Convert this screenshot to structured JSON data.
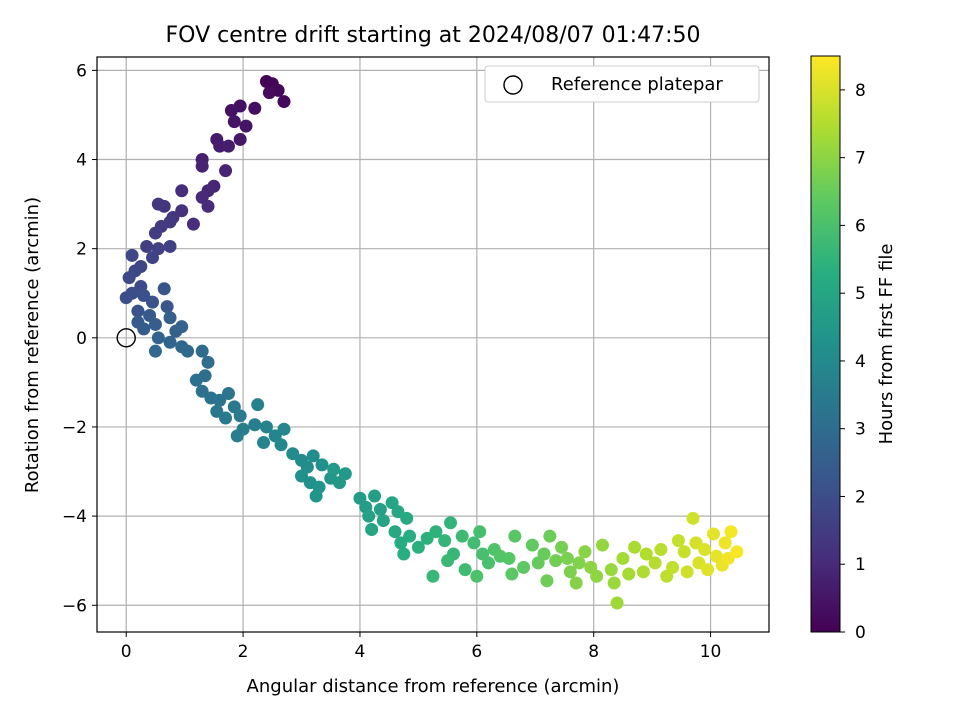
{
  "chart_data": {
    "type": "scatter",
    "title": "FOV centre drift starting at 2024/08/07 01:47:50",
    "xlabel": "Angular distance from reference (arcmin)",
    "ylabel": "Rotation from reference (arcmin)",
    "xlim": [
      -0.5,
      11.0
    ],
    "ylim": [
      -6.6,
      6.3
    ],
    "xticks": [
      0,
      2,
      4,
      6,
      8,
      10
    ],
    "xtick_labels": [
      "0",
      "2",
      "4",
      "6",
      "8",
      "10"
    ],
    "yticks": [
      -6,
      -4,
      -2,
      0,
      2,
      4,
      6
    ],
    "ytick_labels": [
      "−6",
      "−4",
      "−2",
      "0",
      "2",
      "4",
      "6"
    ],
    "grid": true,
    "legend": {
      "placement": "top-right",
      "entries": [
        {
          "label": "Reference platepar",
          "marker": "open-circle",
          "x": 0,
          "y": 0
        }
      ]
    },
    "colorbar": {
      "label": "Hours from first FF file",
      "colormap": "viridis",
      "range": [
        0,
        8.5
      ],
      "ticks": [
        0,
        1,
        2,
        3,
        4,
        5,
        6,
        7,
        8
      ],
      "tick_labels": [
        "0",
        "1",
        "2",
        "3",
        "4",
        "5",
        "6",
        "7",
        "8"
      ]
    },
    "series": [
      {
        "color_by": "hours",
        "points": [
          {
            "x": 2.4,
            "y": 5.75,
            "t": 0.05
          },
          {
            "x": 2.5,
            "y": 5.7,
            "t": 0.1
          },
          {
            "x": 2.6,
            "y": 5.55,
            "t": 0.15
          },
          {
            "x": 2.7,
            "y": 5.3,
            "t": 0.2
          },
          {
            "x": 2.45,
            "y": 5.5,
            "t": 0.25
          },
          {
            "x": 2.2,
            "y": 5.15,
            "t": 0.3
          },
          {
            "x": 1.95,
            "y": 5.2,
            "t": 0.35
          },
          {
            "x": 1.8,
            "y": 5.1,
            "t": 0.4
          },
          {
            "x": 1.85,
            "y": 4.85,
            "t": 0.45
          },
          {
            "x": 2.05,
            "y": 4.75,
            "t": 0.5
          },
          {
            "x": 1.95,
            "y": 4.45,
            "t": 0.55
          },
          {
            "x": 1.55,
            "y": 4.45,
            "t": 0.6
          },
          {
            "x": 1.6,
            "y": 4.3,
            "t": 0.65
          },
          {
            "x": 1.75,
            "y": 4.3,
            "t": 0.7
          },
          {
            "x": 1.3,
            "y": 4.0,
            "t": 0.75
          },
          {
            "x": 1.3,
            "y": 3.85,
            "t": 0.8
          },
          {
            "x": 1.7,
            "y": 3.75,
            "t": 0.85
          },
          {
            "x": 1.5,
            "y": 3.4,
            "t": 0.9
          },
          {
            "x": 1.4,
            "y": 3.3,
            "t": 0.95
          },
          {
            "x": 1.3,
            "y": 3.15,
            "t": 1.0
          },
          {
            "x": 1.4,
            "y": 2.95,
            "t": 1.05
          },
          {
            "x": 0.95,
            "y": 3.3,
            "t": 1.1
          },
          {
            "x": 1.15,
            "y": 2.55,
            "t": 1.15
          },
          {
            "x": 0.95,
            "y": 2.85,
            "t": 1.2
          },
          {
            "x": 0.8,
            "y": 2.7,
            "t": 1.25
          },
          {
            "x": 0.65,
            "y": 2.95,
            "t": 1.3
          },
          {
            "x": 0.55,
            "y": 3.0,
            "t": 1.35
          },
          {
            "x": 0.75,
            "y": 2.6,
            "t": 1.4
          },
          {
            "x": 0.6,
            "y": 2.5,
            "t": 1.45
          },
          {
            "x": 0.5,
            "y": 2.35,
            "t": 1.5
          },
          {
            "x": 0.35,
            "y": 2.05,
            "t": 1.55
          },
          {
            "x": 0.55,
            "y": 2.0,
            "t": 1.6
          },
          {
            "x": 0.75,
            "y": 2.05,
            "t": 1.65
          },
          {
            "x": 0.45,
            "y": 1.8,
            "t": 1.7
          },
          {
            "x": 0.25,
            "y": 1.6,
            "t": 1.75
          },
          {
            "x": 0.1,
            "y": 1.85,
            "t": 1.8
          },
          {
            "x": 0.15,
            "y": 1.5,
            "t": 1.85
          },
          {
            "x": 0.05,
            "y": 1.35,
            "t": 1.9
          },
          {
            "x": 0.25,
            "y": 1.15,
            "t": 1.95
          },
          {
            "x": 0.1,
            "y": 1.0,
            "t": 2.0
          },
          {
            "x": 0.0,
            "y": 0.9,
            "t": 2.05
          },
          {
            "x": 0.3,
            "y": 0.95,
            "t": 2.1
          },
          {
            "x": 0.45,
            "y": 0.8,
            "t": 2.15
          },
          {
            "x": 0.2,
            "y": 0.6,
            "t": 2.2
          },
          {
            "x": 0.65,
            "y": 1.1,
            "t": 2.25
          },
          {
            "x": 0.7,
            "y": 0.7,
            "t": 2.3
          },
          {
            "x": 0.4,
            "y": 0.5,
            "t": 2.35
          },
          {
            "x": 0.2,
            "y": 0.35,
            "t": 2.4
          },
          {
            "x": 0.3,
            "y": 0.2,
            "t": 2.45
          },
          {
            "x": 0.5,
            "y": 0.3,
            "t": 2.5
          },
          {
            "x": 0.75,
            "y": 0.45,
            "t": 2.55
          },
          {
            "x": 0.85,
            "y": 0.15,
            "t": 2.6
          },
          {
            "x": 0.95,
            "y": 0.25,
            "t": 2.65
          },
          {
            "x": 0.55,
            "y": 0.0,
            "t": 2.7
          },
          {
            "x": 0.75,
            "y": -0.1,
            "t": 2.75
          },
          {
            "x": 0.95,
            "y": -0.2,
            "t": 2.8
          },
          {
            "x": 1.05,
            "y": -0.3,
            "t": 2.85
          },
          {
            "x": 0.5,
            "y": -0.3,
            "t": 2.9
          },
          {
            "x": 1.3,
            "y": -0.3,
            "t": 2.95
          },
          {
            "x": 1.4,
            "y": -0.55,
            "t": 3.0
          },
          {
            "x": 1.35,
            "y": -0.85,
            "t": 3.05
          },
          {
            "x": 1.2,
            "y": -0.95,
            "t": 3.1
          },
          {
            "x": 1.3,
            "y": -1.2,
            "t": 3.15
          },
          {
            "x": 1.45,
            "y": -1.35,
            "t": 3.2
          },
          {
            "x": 1.6,
            "y": -1.4,
            "t": 3.25
          },
          {
            "x": 1.75,
            "y": -1.25,
            "t": 3.3
          },
          {
            "x": 1.85,
            "y": -1.55,
            "t": 3.35
          },
          {
            "x": 1.55,
            "y": -1.65,
            "t": 3.4
          },
          {
            "x": 1.7,
            "y": -1.8,
            "t": 3.45
          },
          {
            "x": 1.95,
            "y": -1.75,
            "t": 3.5
          },
          {
            "x": 2.0,
            "y": -2.05,
            "t": 3.55
          },
          {
            "x": 1.9,
            "y": -2.2,
            "t": 3.6
          },
          {
            "x": 2.2,
            "y": -1.95,
            "t": 3.65
          },
          {
            "x": 2.25,
            "y": -1.5,
            "t": 3.7
          },
          {
            "x": 2.4,
            "y": -2.0,
            "t": 3.75
          },
          {
            "x": 2.35,
            "y": -2.35,
            "t": 3.8
          },
          {
            "x": 2.55,
            "y": -2.2,
            "t": 3.85
          },
          {
            "x": 2.7,
            "y": -2.05,
            "t": 3.9
          },
          {
            "x": 2.65,
            "y": -2.4,
            "t": 3.95
          },
          {
            "x": 2.85,
            "y": -2.6,
            "t": 4.0
          },
          {
            "x": 3.0,
            "y": -2.75,
            "t": 4.05
          },
          {
            "x": 3.1,
            "y": -2.9,
            "t": 4.1
          },
          {
            "x": 3.2,
            "y": -2.65,
            "t": 4.15
          },
          {
            "x": 3.35,
            "y": -2.85,
            "t": 4.2
          },
          {
            "x": 3.0,
            "y": -3.1,
            "t": 4.25
          },
          {
            "x": 3.15,
            "y": -3.25,
            "t": 4.3
          },
          {
            "x": 3.3,
            "y": -3.35,
            "t": 4.35
          },
          {
            "x": 3.25,
            "y": -3.55,
            "t": 4.4
          },
          {
            "x": 3.5,
            "y": -3.15,
            "t": 4.45
          },
          {
            "x": 3.65,
            "y": -3.25,
            "t": 4.5
          },
          {
            "x": 3.75,
            "y": -3.05,
            "t": 4.55
          },
          {
            "x": 3.55,
            "y": -2.95,
            "t": 4.6
          },
          {
            "x": 4.0,
            "y": -3.6,
            "t": 4.65
          },
          {
            "x": 4.1,
            "y": -3.8,
            "t": 4.7
          },
          {
            "x": 4.25,
            "y": -3.55,
            "t": 4.75
          },
          {
            "x": 4.35,
            "y": -3.85,
            "t": 4.8
          },
          {
            "x": 4.15,
            "y": -4.0,
            "t": 4.85
          },
          {
            "x": 4.4,
            "y": -4.1,
            "t": 4.9
          },
          {
            "x": 4.2,
            "y": -4.3,
            "t": 4.95
          },
          {
            "x": 4.55,
            "y": -3.7,
            "t": 5.0
          },
          {
            "x": 4.65,
            "y": -3.9,
            "t": 5.05
          },
          {
            "x": 4.6,
            "y": -4.35,
            "t": 5.1
          },
          {
            "x": 4.8,
            "y": -4.05,
            "t": 5.15
          },
          {
            "x": 4.7,
            "y": -4.6,
            "t": 5.2
          },
          {
            "x": 4.85,
            "y": -4.45,
            "t": 5.25
          },
          {
            "x": 4.75,
            "y": -4.85,
            "t": 5.3
          },
          {
            "x": 5.0,
            "y": -4.7,
            "t": 5.35
          },
          {
            "x": 5.15,
            "y": -4.5,
            "t": 5.4
          },
          {
            "x": 5.3,
            "y": -4.35,
            "t": 5.45
          },
          {
            "x": 5.55,
            "y": -4.15,
            "t": 5.5
          },
          {
            "x": 5.45,
            "y": -4.55,
            "t": 5.55
          },
          {
            "x": 5.6,
            "y": -4.85,
            "t": 5.6
          },
          {
            "x": 5.25,
            "y": -5.35,
            "t": 5.65
          },
          {
            "x": 5.5,
            "y": -5.0,
            "t": 5.7
          },
          {
            "x": 5.75,
            "y": -4.45,
            "t": 5.75
          },
          {
            "x": 5.8,
            "y": -5.2,
            "t": 5.8
          },
          {
            "x": 5.95,
            "y": -4.6,
            "t": 5.85
          },
          {
            "x": 6.05,
            "y": -4.35,
            "t": 5.9
          },
          {
            "x": 6.1,
            "y": -4.85,
            "t": 5.95
          },
          {
            "x": 6.2,
            "y": -5.05,
            "t": 6.0
          },
          {
            "x": 6.0,
            "y": -5.35,
            "t": 6.05
          },
          {
            "x": 6.3,
            "y": -4.75,
            "t": 6.1
          },
          {
            "x": 6.4,
            "y": -4.9,
            "t": 6.15
          },
          {
            "x": 6.55,
            "y": -4.95,
            "t": 6.2
          },
          {
            "x": 6.65,
            "y": -4.45,
            "t": 6.25
          },
          {
            "x": 6.6,
            "y": -5.3,
            "t": 6.3
          },
          {
            "x": 6.8,
            "y": -5.15,
            "t": 6.35
          },
          {
            "x": 6.95,
            "y": -4.65,
            "t": 6.4
          },
          {
            "x": 7.05,
            "y": -5.05,
            "t": 6.45
          },
          {
            "x": 7.15,
            "y": -4.85,
            "t": 6.5
          },
          {
            "x": 7.25,
            "y": -4.45,
            "t": 6.55
          },
          {
            "x": 7.2,
            "y": -5.45,
            "t": 6.6
          },
          {
            "x": 7.35,
            "y": -5.0,
            "t": 6.65
          },
          {
            "x": 7.45,
            "y": -4.7,
            "t": 6.7
          },
          {
            "x": 7.55,
            "y": -4.95,
            "t": 6.75
          },
          {
            "x": 7.6,
            "y": -5.25,
            "t": 6.8
          },
          {
            "x": 7.75,
            "y": -5.05,
            "t": 6.85
          },
          {
            "x": 7.7,
            "y": -5.5,
            "t": 6.9
          },
          {
            "x": 7.85,
            "y": -4.8,
            "t": 6.95
          },
          {
            "x": 7.95,
            "y": -5.15,
            "t": 7.0
          },
          {
            "x": 8.05,
            "y": -5.35,
            "t": 7.05
          },
          {
            "x": 8.15,
            "y": -4.65,
            "t": 7.1
          },
          {
            "x": 8.3,
            "y": -5.2,
            "t": 7.15
          },
          {
            "x": 8.35,
            "y": -5.5,
            "t": 7.2
          },
          {
            "x": 8.4,
            "y": -5.95,
            "t": 7.25
          },
          {
            "x": 8.5,
            "y": -4.95,
            "t": 7.3
          },
          {
            "x": 8.6,
            "y": -5.3,
            "t": 7.35
          },
          {
            "x": 8.7,
            "y": -4.7,
            "t": 7.4
          },
          {
            "x": 8.85,
            "y": -5.25,
            "t": 7.45
          },
          {
            "x": 8.9,
            "y": -4.85,
            "t": 7.5
          },
          {
            "x": 9.05,
            "y": -5.05,
            "t": 7.55
          },
          {
            "x": 9.15,
            "y": -4.75,
            "t": 7.6
          },
          {
            "x": 9.25,
            "y": -5.35,
            "t": 7.65
          },
          {
            "x": 9.35,
            "y": -5.15,
            "t": 7.7
          },
          {
            "x": 9.45,
            "y": -4.55,
            "t": 7.75
          },
          {
            "x": 9.55,
            "y": -4.8,
            "t": 7.8
          },
          {
            "x": 9.6,
            "y": -5.25,
            "t": 7.85
          },
          {
            "x": 9.7,
            "y": -4.05,
            "t": 7.9
          },
          {
            "x": 9.75,
            "y": -4.6,
            "t": 7.95
          },
          {
            "x": 9.8,
            "y": -5.05,
            "t": 8.0
          },
          {
            "x": 9.9,
            "y": -4.75,
            "t": 8.05
          },
          {
            "x": 9.95,
            "y": -5.2,
            "t": 8.1
          },
          {
            "x": 10.05,
            "y": -4.4,
            "t": 8.15
          },
          {
            "x": 10.1,
            "y": -4.9,
            "t": 8.2
          },
          {
            "x": 10.2,
            "y": -5.1,
            "t": 8.25
          },
          {
            "x": 10.25,
            "y": -4.6,
            "t": 8.3
          },
          {
            "x": 10.3,
            "y": -4.95,
            "t": 8.35
          },
          {
            "x": 10.35,
            "y": -4.35,
            "t": 8.4
          },
          {
            "x": 10.45,
            "y": -4.8,
            "t": 8.45
          }
        ]
      }
    ]
  }
}
